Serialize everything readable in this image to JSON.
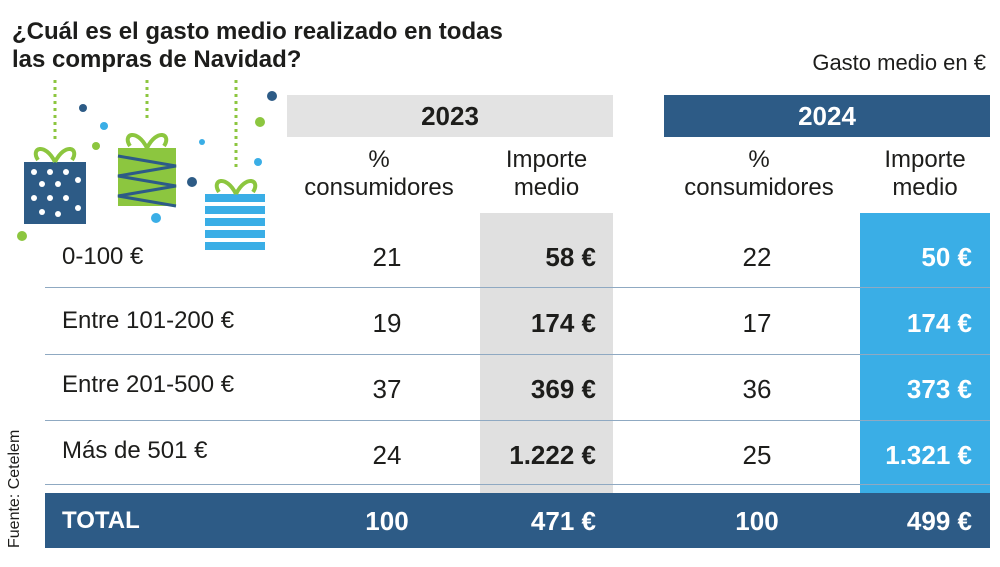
{
  "title": "¿Cuál es el gasto medio realizado en todas las compras de Navidad?",
  "subtitle": "Gasto medio en €",
  "source": "Fuente: Cetelem",
  "icons": [
    "gift-box-icon",
    "gift-box-icon",
    "gift-box-icon"
  ],
  "colors": {
    "grey_band": "#e0e0e0",
    "blue_band": "#3aaee6",
    "dark_blue": "#2d5b86"
  },
  "chart_data": {
    "type": "table",
    "title": "¿Cuál es el gasto medio realizado en todas las compras de Navidad?",
    "unit": "Gasto medio en €",
    "years": [
      "2023",
      "2024"
    ],
    "column_headers": {
      "pct_line1": "%",
      "pct_line2": "consumidores",
      "imp_line1": "Importe",
      "imp_line2": "medio"
    },
    "rows": [
      {
        "label": "0-100 €",
        "pct_2023": "21",
        "imp_2023": "58 €",
        "pct_2024": "22",
        "imp_2024": "50 €"
      },
      {
        "label": "Entre 101-200 €",
        "pct_2023": "19",
        "imp_2023": "174 €",
        "pct_2024": "17",
        "imp_2024": "174 €"
      },
      {
        "label": "Entre 201-500 €",
        "pct_2023": "37",
        "imp_2023": "369 €",
        "pct_2024": "36",
        "imp_2024": "373 €"
      },
      {
        "label": "Más de 501 €",
        "pct_2023": "24",
        "imp_2023": "1.222 €",
        "pct_2024": "25",
        "imp_2024": "1.321 €"
      }
    ],
    "total": {
      "label": "TOTAL",
      "pct_2023": "100",
      "imp_2023": "471 €",
      "pct_2024": "100",
      "imp_2024": "499 €"
    }
  }
}
